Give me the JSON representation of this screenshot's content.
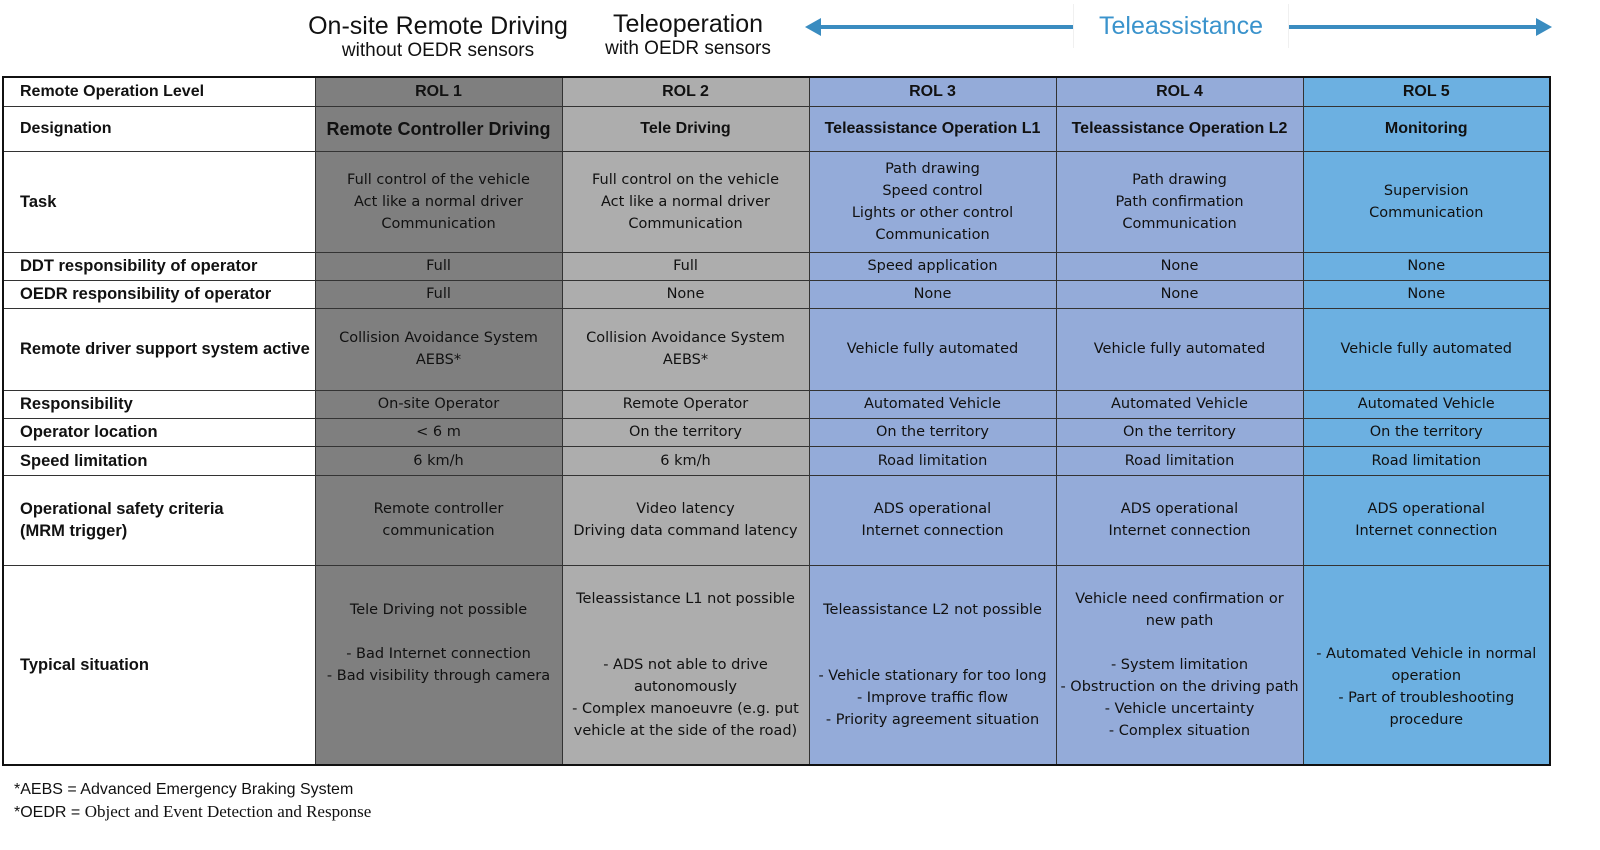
{
  "header": {
    "onsite_title": "On-site Remote Driving",
    "onsite_sub": "without  OEDR sensors",
    "teleop_title": "Teleoperation",
    "teleop_sub": "with  OEDR sensors",
    "teleassistance": "Teleassistance",
    "arrow_color": "#3a8cc0"
  },
  "colors": {
    "rol1": "#7f7f7f",
    "rol2": "#adadad",
    "rol3": "#94abd9",
    "rol4": "#94abd9",
    "rol5": "#6cb0e1"
  },
  "table": {
    "rows": [
      {
        "label": "Remote Operation Level",
        "cells": [
          "ROL 1",
          "ROL 2",
          "ROL 3",
          "ROL 4",
          "ROL 5"
        ],
        "h": 29
      },
      {
        "label": "Designation",
        "cells": [
          "Remote Controller Driving",
          "Tele Driving",
          "Teleassistance Operation L1",
          "Teleassistance Operation L2",
          "Monitoring"
        ],
        "h": 45
      },
      {
        "label": "Task",
        "cells": [
          "Full control of the vehicle\nAct like a normal driver\nCommunication",
          "Full control on the vehicle\nAct like a normal driver\nCommunication",
          "Path drawing\nSpeed control\nLights or other control\nCommunication",
          "Path drawing\nPath confirmation\nCommunication",
          "Supervision\nCommunication"
        ],
        "h": 101
      },
      {
        "label": "DDT responsibility of operator",
        "cells": [
          "Full",
          "Full",
          "Speed application",
          "None",
          "None"
        ],
        "h": 28
      },
      {
        "label": "OEDR responsibility of operator",
        "cells": [
          "Full",
          "None",
          "None",
          "None",
          "None"
        ],
        "h": 28
      },
      {
        "label": "Remote driver support system active",
        "cells": [
          "Collision Avoidance System\nAEBS*",
          "Collision Avoidance System\nAEBS*",
          "Vehicle fully automated",
          "Vehicle fully automated",
          "Vehicle fully automated"
        ],
        "h": 82
      },
      {
        "label": "Responsibility",
        "cells": [
          "On-site Operator",
          "Remote Operator",
          "Automated Vehicle",
          "Automated Vehicle",
          "Automated Vehicle"
        ],
        "h": 28
      },
      {
        "label": "Operator location",
        "cells": [
          "< 6 m",
          "On the territory",
          "On the territory",
          "On the territory",
          "On the territory"
        ],
        "h": 28
      },
      {
        "label": "Speed limitation",
        "cells": [
          "6 km/h",
          "6 km/h",
          "Road limitation",
          "Road limitation",
          "Road limitation"
        ],
        "h": 29
      },
      {
        "label": "Operational safety criteria\n(MRM trigger)",
        "cells": [
          "Remote controller\ncommunication",
          "Video latency\nDriving data command latency",
          "ADS operational\nInternet connection",
          "ADS operational\nInternet connection",
          "ADS operational\nInternet connection"
        ],
        "h": 90
      },
      {
        "label": "Typical situation",
        "cells": [
          "Tele Driving not possible\n\n- Bad Internet connection\n- Bad visibility through camera\n\n\n",
          "Teleassistance L1 not possible\n\n\n- ADS not able to drive\nautonomously\n- Complex manoeuvre (e.g. put\nvehicle at the side of the road)",
          "Teleassistance L2 not possible\n\n\n- Vehicle stationary for too long\n- Improve traffic flow\n- Priority agreement situation\n",
          "Vehicle need confirmation or\nnew path\n\n- System limitation\n- Obstruction on the driving path\n- Vehicle uncertainty\n- Complex situation",
          "\n\n- Automated Vehicle in normal\noperation\n- Part of troubleshooting\nprocedure"
        ],
        "h": 200
      }
    ]
  },
  "footnotes": {
    "aebs": "*AEBS = Advanced Emergency Braking System",
    "oedr_key": "*OEDR = ",
    "oedr_value": "Object and Event Detection and Response"
  }
}
